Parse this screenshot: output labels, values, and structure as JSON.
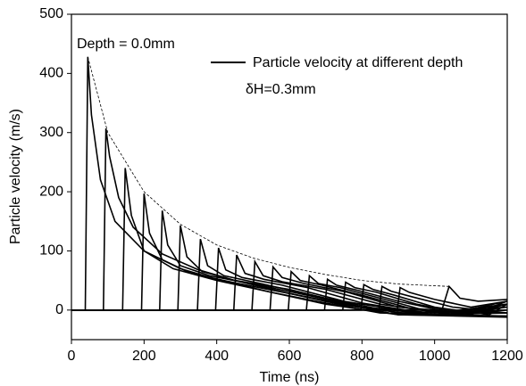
{
  "chart_data": {
    "type": "line",
    "xlabel": "Time (ns)",
    "ylabel": "Particle velocity (m/s)",
    "legend": "Particle velocity at different depth",
    "annotations": [
      "Depth = 0.0mm",
      "δH=0.3mm"
    ],
    "xlim": [
      0,
      1200
    ],
    "xticks": [
      0,
      200,
      400,
      600,
      800,
      1000,
      1200
    ],
    "ylim": [
      -50,
      500
    ],
    "yticks": [
      0,
      100,
      200,
      300,
      400,
      500
    ],
    "color": "#000000",
    "series": [
      {
        "x": [
          0,
          38,
          45,
          55,
          80,
          120,
          200,
          300,
          400,
          550,
          700,
          850,
          1200
        ],
        "values": [
          0,
          0,
          428,
          330,
          220,
          150,
          100,
          70,
          52,
          30,
          12,
          -5,
          -10
        ]
      },
      {
        "x": [
          0,
          88,
          95,
          105,
          130,
          170,
          250,
          350,
          450,
          600,
          750,
          900,
          1200
        ],
        "values": [
          0,
          0,
          307,
          260,
          190,
          140,
          95,
          68,
          50,
          28,
          10,
          -8,
          -12
        ]
      },
      {
        "x": [
          0,
          141,
          148,
          165,
          200,
          280,
          400,
          550,
          700,
          900,
          1200
        ],
        "values": [
          0,
          0,
          240,
          160,
          100,
          70,
          50,
          30,
          10,
          -8,
          -10
        ]
      },
      {
        "x": [
          0,
          193,
          200,
          215,
          250,
          330,
          450,
          600,
          750,
          950,
          1200
        ],
        "values": [
          0,
          0,
          197,
          130,
          85,
          62,
          46,
          28,
          8,
          -8,
          -5
        ]
      },
      {
        "x": [
          0,
          243,
          250,
          265,
          300,
          380,
          500,
          650,
          800,
          1000,
          1200
        ],
        "values": [
          0,
          0,
          168,
          110,
          75,
          58,
          44,
          25,
          5,
          -8,
          0
        ]
      },
      {
        "x": [
          0,
          293,
          300,
          318,
          360,
          450,
          600,
          800,
          1000,
          1200
        ],
        "values": [
          0,
          0,
          143,
          90,
          65,
          50,
          35,
          5,
          -5,
          5
        ]
      },
      {
        "x": [
          0,
          347,
          355,
          375,
          420,
          520,
          700,
          900,
          1200
        ],
        "values": [
          0,
          0,
          120,
          75,
          58,
          45,
          20,
          -5,
          0
        ]
      },
      {
        "x": [
          0,
          397,
          405,
          425,
          470,
          580,
          750,
          950,
          1200
        ],
        "values": [
          0,
          0,
          105,
          68,
          55,
          42,
          15,
          -5,
          5
        ]
      },
      {
        "x": [
          0,
          447,
          455,
          478,
          530,
          650,
          800,
          1000,
          1200
        ],
        "values": [
          0,
          0,
          93,
          62,
          52,
          38,
          12,
          -8,
          10
        ]
      },
      {
        "x": [
          0,
          497,
          505,
          528,
          580,
          700,
          850,
          1050,
          1200
        ],
        "values": [
          0,
          0,
          82,
          58,
          48,
          35,
          10,
          -8,
          5
        ]
      },
      {
        "x": [
          0,
          547,
          555,
          580,
          640,
          760,
          900,
          1100,
          1200
        ],
        "values": [
          0,
          0,
          73,
          55,
          45,
          30,
          5,
          -5,
          10
        ]
      },
      {
        "x": [
          0,
          597,
          605,
          630,
          690,
          800,
          950,
          1200
        ],
        "values": [
          0,
          0,
          65,
          50,
          42,
          25,
          0,
          -5
        ]
      },
      {
        "x": [
          0,
          647,
          655,
          680,
          740,
          850,
          1000,
          1200
        ],
        "values": [
          0,
          0,
          58,
          45,
          38,
          20,
          -5,
          10
        ]
      },
      {
        "x": [
          0,
          697,
          705,
          730,
          790,
          900,
          1050,
          1200
        ],
        "values": [
          0,
          0,
          52,
          42,
          33,
          15,
          -5,
          15
        ]
      },
      {
        "x": [
          0,
          747,
          755,
          780,
          840,
          950,
          1100,
          1200
        ],
        "values": [
          0,
          0,
          47,
          38,
          30,
          10,
          -8,
          15
        ]
      },
      {
        "x": [
          0,
          797,
          805,
          830,
          890,
          1000,
          1150,
          1200
        ],
        "values": [
          0,
          0,
          43,
          35,
          25,
          5,
          -8,
          10
        ]
      },
      {
        "x": [
          0,
          847,
          855,
          880,
          940,
          1050,
          1200
        ],
        "values": [
          0,
          0,
          40,
          32,
          22,
          5,
          -5
        ]
      },
      {
        "x": [
          0,
          897,
          905,
          930,
          1000,
          1100,
          1200
        ],
        "values": [
          0,
          0,
          38,
          30,
          18,
          5,
          15
        ]
      },
      {
        "x": [
          0,
          1020,
          1040,
          1070,
          1120,
          1200
        ],
        "values": [
          0,
          0,
          40,
          20,
          15,
          18
        ]
      },
      {
        "x": [
          45,
          100,
          200,
          300,
          400,
          500,
          600,
          700,
          800,
          900,
          1040
        ],
        "values": [
          428,
          300,
          200,
          145,
          110,
          88,
          72,
          60,
          50,
          44,
          40
        ],
        "style": "dashed"
      }
    ]
  }
}
